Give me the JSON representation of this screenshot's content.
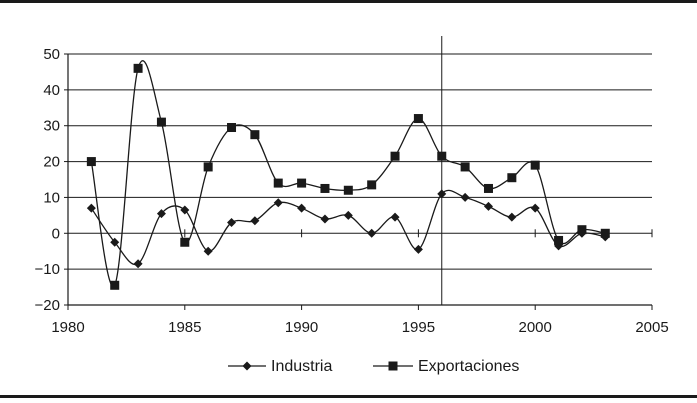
{
  "chart_data": {
    "type": "line",
    "title": "",
    "xlabel": "",
    "ylabel": "",
    "xlim": [
      1980,
      2005
    ],
    "ylim": [
      -20,
      50
    ],
    "x_ticks": [
      1980,
      1985,
      1990,
      1995,
      2000,
      2005
    ],
    "y_ticks": [
      -20,
      -10,
      0,
      10,
      20,
      30,
      40,
      50
    ],
    "vertical_marker_x": 1996,
    "grid": "horizontal",
    "legend_position": "bottom",
    "series": [
      {
        "name": "Industria",
        "marker": "diamond",
        "color": "#1a1a1a",
        "x": [
          1981,
          1982,
          1983,
          1984,
          1985,
          1986,
          1987,
          1988,
          1989,
          1990,
          1991,
          1992,
          1993,
          1994,
          1995,
          1996,
          1997,
          1998,
          1999,
          2000,
          2001,
          2002,
          2003
        ],
        "values": [
          7,
          -2.5,
          -8.5,
          5.5,
          6.5,
          -5,
          3,
          3.5,
          8.5,
          7,
          4,
          5,
          0,
          4.5,
          -4.5,
          11,
          10,
          7.5,
          4.5,
          7,
          -3.5,
          0,
          -1
        ]
      },
      {
        "name": "Exportaciones",
        "marker": "square",
        "color": "#1a1a1a",
        "x": [
          1981,
          1982,
          1983,
          1984,
          1985,
          1986,
          1987,
          1988,
          1989,
          1990,
          1991,
          1992,
          1993,
          1994,
          1995,
          1996,
          1997,
          1998,
          1999,
          2000,
          2001,
          2002,
          2003
        ],
        "values": [
          20,
          -14.5,
          46,
          31,
          -2.5,
          18.5,
          29.5,
          27.5,
          14,
          14,
          12.5,
          12,
          13.5,
          21.5,
          32,
          21.5,
          18.5,
          12.5,
          15.5,
          19,
          -2,
          1,
          0
        ]
      }
    ]
  }
}
